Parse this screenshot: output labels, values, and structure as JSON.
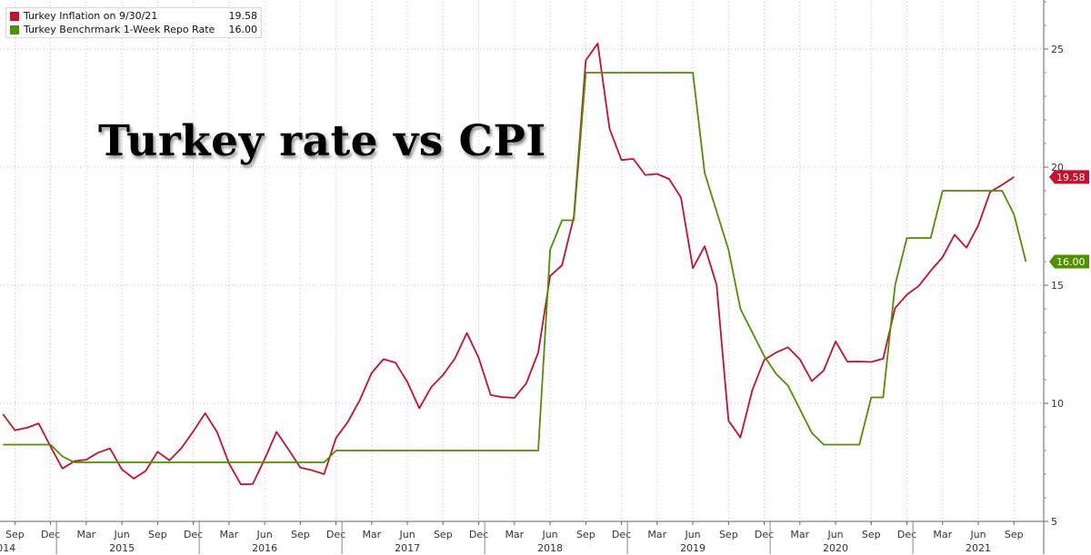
{
  "legend": {
    "items": [
      {
        "label": "Turkey Inflation on 9/30/21",
        "value": "19.58",
        "color": "#c8102e"
      },
      {
        "label": "Turkey Benchrmark 1-Week Repo Rate",
        "value": "16.00",
        "color": "#4f8f00"
      }
    ]
  },
  "chart_data": {
    "type": "line",
    "title": "Turkey rate vs CPI",
    "ylim": [
      5,
      27
    ],
    "y_ticks": [
      5,
      10,
      15,
      20,
      25
    ],
    "x_range": [
      "2014-08",
      "2021-11"
    ],
    "x_tick_labels": [
      {
        "date": "2014-09",
        "label": "Sep"
      },
      {
        "date": "2014-12",
        "label": "Dec"
      },
      {
        "date": "2015-03",
        "label": "Mar"
      },
      {
        "date": "2015-06",
        "label": "Jun"
      },
      {
        "date": "2015-09",
        "label": "Sep"
      },
      {
        "date": "2015-12",
        "label": "Dec"
      },
      {
        "date": "2016-03",
        "label": "Mar"
      },
      {
        "date": "2016-06",
        "label": "Jun"
      },
      {
        "date": "2016-09",
        "label": "Sep"
      },
      {
        "date": "2016-12",
        "label": "Dec"
      },
      {
        "date": "2017-03",
        "label": "Mar"
      },
      {
        "date": "2017-06",
        "label": "Jun"
      },
      {
        "date": "2017-09",
        "label": "Sep"
      },
      {
        "date": "2017-12",
        "label": "Dec"
      },
      {
        "date": "2018-03",
        "label": "Mar"
      },
      {
        "date": "2018-06",
        "label": "Jun"
      },
      {
        "date": "2018-09",
        "label": "Sep"
      },
      {
        "date": "2018-12",
        "label": "Dec"
      },
      {
        "date": "2019-03",
        "label": "Mar"
      },
      {
        "date": "2019-06",
        "label": "Jun"
      },
      {
        "date": "2019-09",
        "label": "Sep"
      },
      {
        "date": "2019-12",
        "label": "Dec"
      },
      {
        "date": "2020-03",
        "label": "Mar"
      },
      {
        "date": "2020-06",
        "label": "Jun"
      },
      {
        "date": "2020-09",
        "label": "Sep"
      },
      {
        "date": "2020-12",
        "label": "Dec"
      },
      {
        "date": "2021-03",
        "label": "Mar"
      },
      {
        "date": "2021-06",
        "label": "Jun"
      },
      {
        "date": "2021-09",
        "label": "Sep"
      }
    ],
    "year_labels": [
      {
        "date": "2014-08",
        "label": "2014"
      },
      {
        "date": "2015-06",
        "label": "2015"
      },
      {
        "date": "2016-06",
        "label": "2016"
      },
      {
        "date": "2017-06",
        "label": "2017"
      },
      {
        "date": "2018-06",
        "label": "2018"
      },
      {
        "date": "2019-06",
        "label": "2019"
      },
      {
        "date": "2020-06",
        "label": "2020"
      },
      {
        "date": "2021-06",
        "label": "2021"
      }
    ],
    "year_boundaries": [
      "2015-01",
      "2016-01",
      "2017-01",
      "2018-01",
      "2019-01",
      "2020-01",
      "2021-01"
    ],
    "series": [
      {
        "name": "Turkey Inflation",
        "color": "#c8102e",
        "last_value": "19.58",
        "points": [
          [
            "2014-08",
            9.54
          ],
          [
            "2014-09",
            8.86
          ],
          [
            "2014-10",
            8.96
          ],
          [
            "2014-11",
            9.15
          ],
          [
            "2014-12",
            8.17
          ],
          [
            "2015-01",
            7.24
          ],
          [
            "2015-02",
            7.55
          ],
          [
            "2015-03",
            7.61
          ],
          [
            "2015-04",
            7.91
          ],
          [
            "2015-05",
            8.09
          ],
          [
            "2015-06",
            7.2
          ],
          [
            "2015-07",
            6.81
          ],
          [
            "2015-08",
            7.14
          ],
          [
            "2015-09",
            7.95
          ],
          [
            "2015-10",
            7.58
          ],
          [
            "2015-11",
            8.1
          ],
          [
            "2015-12",
            8.81
          ],
          [
            "2016-01",
            9.58
          ],
          [
            "2016-02",
            8.78
          ],
          [
            "2016-03",
            7.46
          ],
          [
            "2016-04",
            6.57
          ],
          [
            "2016-05",
            6.58
          ],
          [
            "2016-06",
            7.64
          ],
          [
            "2016-07",
            8.79
          ],
          [
            "2016-08",
            8.05
          ],
          [
            "2016-09",
            7.28
          ],
          [
            "2016-10",
            7.16
          ],
          [
            "2016-11",
            7.0
          ],
          [
            "2016-12",
            8.53
          ],
          [
            "2017-01",
            9.22
          ],
          [
            "2017-02",
            10.13
          ],
          [
            "2017-03",
            11.29
          ],
          [
            "2017-04",
            11.87
          ],
          [
            "2017-05",
            11.72
          ],
          [
            "2017-06",
            10.9
          ],
          [
            "2017-07",
            9.79
          ],
          [
            "2017-08",
            10.68
          ],
          [
            "2017-09",
            11.2
          ],
          [
            "2017-10",
            11.9
          ],
          [
            "2017-11",
            12.98
          ],
          [
            "2017-12",
            11.92
          ],
          [
            "2018-01",
            10.35
          ],
          [
            "2018-02",
            10.26
          ],
          [
            "2018-03",
            10.23
          ],
          [
            "2018-04",
            10.85
          ],
          [
            "2018-05",
            12.15
          ],
          [
            "2018-06",
            15.39
          ],
          [
            "2018-07",
            15.85
          ],
          [
            "2018-08",
            17.9
          ],
          [
            "2018-09",
            24.52
          ],
          [
            "2018-10",
            25.24
          ],
          [
            "2018-11",
            21.62
          ],
          [
            "2018-12",
            20.3
          ],
          [
            "2019-01",
            20.35
          ],
          [
            "2019-02",
            19.67
          ],
          [
            "2019-03",
            19.71
          ],
          [
            "2019-04",
            19.5
          ],
          [
            "2019-05",
            18.71
          ],
          [
            "2019-06",
            15.72
          ],
          [
            "2019-07",
            16.65
          ],
          [
            "2019-08",
            15.01
          ],
          [
            "2019-09",
            9.26
          ],
          [
            "2019-10",
            8.55
          ],
          [
            "2019-11",
            10.56
          ],
          [
            "2019-12",
            11.84
          ],
          [
            "2020-01",
            12.15
          ],
          [
            "2020-02",
            12.37
          ],
          [
            "2020-03",
            11.86
          ],
          [
            "2020-04",
            10.94
          ],
          [
            "2020-05",
            11.39
          ],
          [
            "2020-06",
            12.62
          ],
          [
            "2020-07",
            11.76
          ],
          [
            "2020-08",
            11.77
          ],
          [
            "2020-09",
            11.75
          ],
          [
            "2020-10",
            11.89
          ],
          [
            "2020-11",
            14.03
          ],
          [
            "2020-12",
            14.6
          ],
          [
            "2021-01",
            14.97
          ],
          [
            "2021-02",
            15.61
          ],
          [
            "2021-03",
            16.19
          ],
          [
            "2021-04",
            17.14
          ],
          [
            "2021-05",
            16.59
          ],
          [
            "2021-06",
            17.53
          ],
          [
            "2021-07",
            18.95
          ],
          [
            "2021-08",
            19.25
          ],
          [
            "2021-09",
            19.58
          ]
        ]
      },
      {
        "name": "Turkey Benchrmark 1-Week Repo Rate",
        "color": "#4f8f00",
        "last_value": "16.00",
        "points": [
          [
            "2014-08",
            8.25
          ],
          [
            "2014-12",
            8.25
          ],
          [
            "2015-01",
            7.75
          ],
          [
            "2015-02",
            7.5
          ],
          [
            "2016-11",
            7.5
          ],
          [
            "2016-12",
            8.0
          ],
          [
            "2018-05",
            8.0
          ],
          [
            "2018-06",
            16.5
          ],
          [
            "2018-07",
            17.75
          ],
          [
            "2018-08",
            17.75
          ],
          [
            "2018-09",
            24.0
          ],
          [
            "2019-06",
            24.0
          ],
          [
            "2019-07",
            19.75
          ],
          [
            "2019-09",
            16.5
          ],
          [
            "2019-10",
            14.0
          ],
          [
            "2019-12",
            12.0
          ],
          [
            "2020-01",
            11.25
          ],
          [
            "2020-02",
            10.75
          ],
          [
            "2020-03",
            9.75
          ],
          [
            "2020-04",
            8.75
          ],
          [
            "2020-05",
            8.25
          ],
          [
            "2020-08",
            8.25
          ],
          [
            "2020-09",
            10.25
          ],
          [
            "2020-10",
            10.25
          ],
          [
            "2020-11",
            15.0
          ],
          [
            "2020-12",
            17.0
          ],
          [
            "2021-02",
            17.0
          ],
          [
            "2021-03",
            19.0
          ],
          [
            "2021-08",
            19.0
          ],
          [
            "2021-09",
            18.0
          ],
          [
            "2021-10",
            16.0
          ]
        ]
      }
    ]
  }
}
